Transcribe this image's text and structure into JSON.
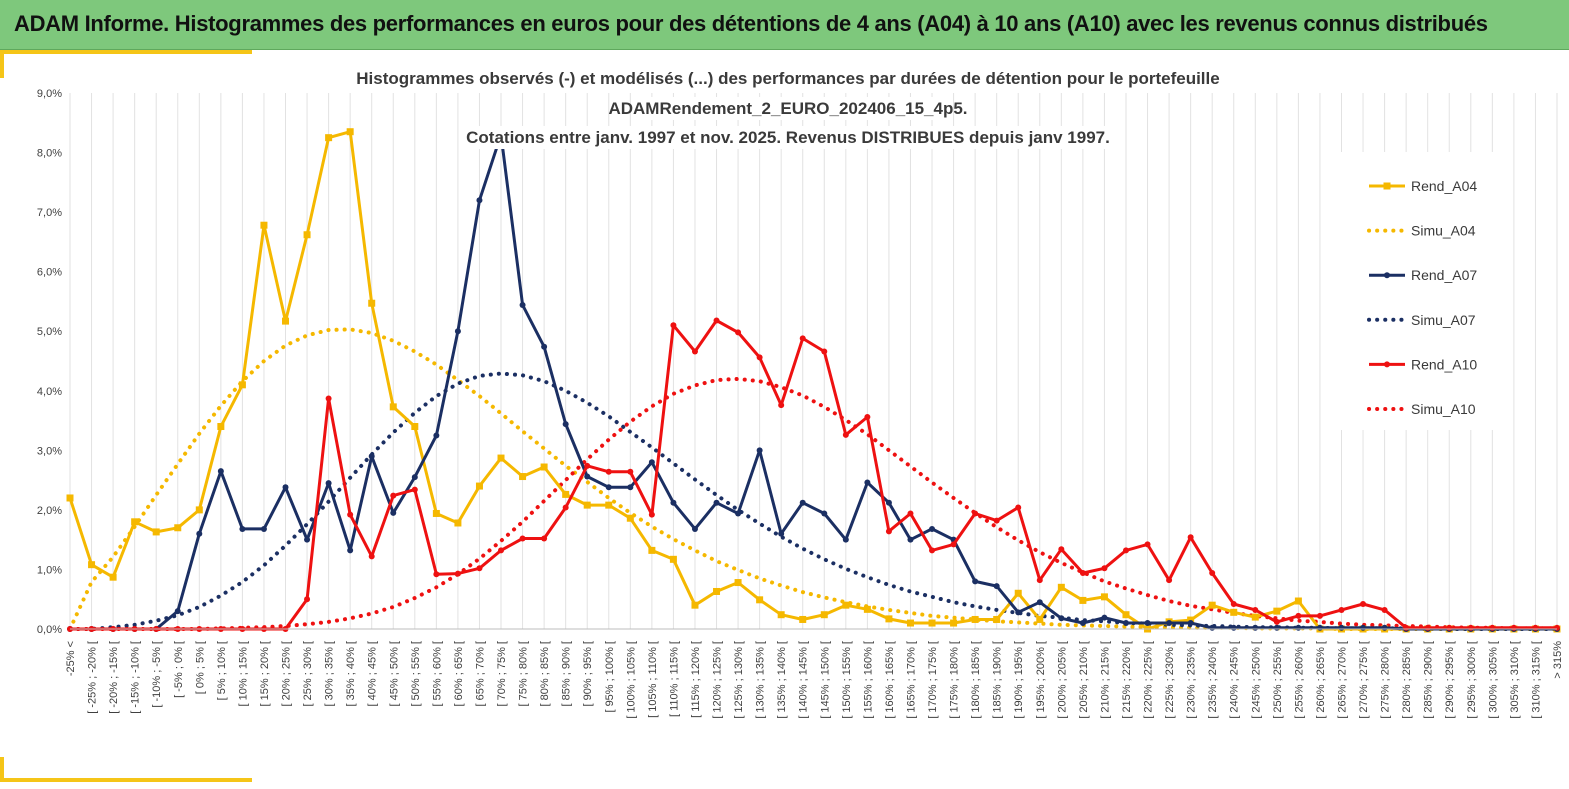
{
  "header": {
    "title": "ADAM Informe. Histogrammes des performances en euros pour des détentions de 4 ans (A04) à 10 ans (A10) avec les revenus connus distribués"
  },
  "colors": {
    "banner": "#7ec87c",
    "accent": "#f5c518",
    "A04": "#f5b800",
    "A07": "#1b2f63",
    "A10": "#ee1111"
  },
  "chart_data": {
    "type": "line",
    "title_lines": [
      "Histogrammes observés (-) et modélisés (...) des performances par durées de détention pour le portefeuille",
      "ADAMRendement_2_EURO_202406_15_4p5.",
      "Cotations entre janv. 1997 et nov. 2025. Revenus DISTRIBUES depuis janv 1997."
    ],
    "ylim": [
      0,
      9
    ],
    "yticks": [
      "0,0%",
      "1,0%",
      "2,0%",
      "3,0%",
      "4,0%",
      "5,0%",
      "6,0%",
      "7,0%",
      "8,0%",
      "9,0%"
    ],
    "y_unit": "%",
    "grid": "vertical",
    "legend_position": "right",
    "categories": [
      "-25% <",
      "[ -25% ; -20% [",
      "[ -20% ; -15% [",
      "[ -15% ; -10% [",
      "[ -10% ; -5% [",
      "[ -5% ; 0% [",
      "[ 0% ; 5% [",
      "[ 5% ; 10% [",
      "[ 10% ; 15% [",
      "[ 15% ; 20% [",
      "[ 20% ; 25% [",
      "[ 25% ; 30% [",
      "[ 30% ; 35% [",
      "[ 35% ; 40% [",
      "[ 40% ; 45% [",
      "[ 45% ; 50% [",
      "[ 50% ; 55% [",
      "[ 55% ; 60% [",
      "[ 60% ; 65% [",
      "[ 65% ; 70% [",
      "[ 70% ; 75% [",
      "[ 75% ; 80% [",
      "[ 80% ; 85% [",
      "[ 85% ; 90% [",
      "[ 90% ; 95% [",
      "[ 95% ; 100% [",
      "[ 100% ; 105% [",
      "[ 105% ; 110% [",
      "[ 110% ; 115% [",
      "[ 115% ; 120% [",
      "[ 120% ; 125% [",
      "[ 125% ; 130% [",
      "[ 130% ; 135% [",
      "[ 135% ; 140% [",
      "[ 140% ; 145% [",
      "[ 145% ; 150% [",
      "[ 150% ; 155% [",
      "[ 155% ; 160% [",
      "[ 160% ; 165% [",
      "[ 165% ; 170% [",
      "[ 170% ; 175% [",
      "[ 175% ; 180% [",
      "[ 180% ; 185% [",
      "[ 185% ; 190% [",
      "[ 190% ; 195% [",
      "[ 195% ; 200% [",
      "[ 200% ; 205% [",
      "[ 205% ; 210% [",
      "[ 210% ; 215% [",
      "[ 215% ; 220% [",
      "[ 220% ; 225% [",
      "[ 225% ; 230% [",
      "[ 230% ; 235% [",
      "[ 235% ; 240% [",
      "[ 240% ; 245% [",
      "[ 245% ; 250% [",
      "[ 250% ; 255% [",
      "[ 255% ; 260% [",
      "[ 260% ; 265% [",
      "[ 265% ; 270% [",
      "[ 270% ; 275% [",
      "[ 275% ; 280% [",
      "[ 280% ; 285% [",
      "[ 285% ; 290% [",
      "[ 290% ; 295% [",
      "[ 295% ; 300% [",
      "[ 300% ; 305% [",
      "[ 305% ; 310% [",
      "[ 310% ; 315% [",
      "> 315%"
    ],
    "series": [
      {
        "name": "Rend_A04",
        "style": "solid",
        "marker": "square",
        "color": "#f5b800",
        "values": [
          2.2,
          1.08,
          0.87,
          1.8,
          1.63,
          1.7,
          2.0,
          3.4,
          4.1,
          6.78,
          5.17,
          6.62,
          8.25,
          8.35,
          5.47,
          3.73,
          3.4,
          1.94,
          1.78,
          2.4,
          2.87,
          2.56,
          2.72,
          2.26,
          2.08,
          2.08,
          1.86,
          1.32,
          1.17,
          0.4,
          0.63,
          0.78,
          0.49,
          0.24,
          0.16,
          0.24,
          0.4,
          0.33,
          0.17,
          0.1,
          0.1,
          0.1,
          0.16,
          0.16,
          0.6,
          0.16,
          0.7,
          0.48,
          0.54,
          0.24,
          0.0,
          0.12,
          0.15,
          0.4,
          0.28,
          0.2,
          0.3,
          0.47,
          0.0,
          0.0,
          0.0,
          0.0,
          0.0,
          0.0,
          0.0,
          0.0,
          0.0,
          0.0,
          0.0,
          0.0
        ]
      },
      {
        "name": "Simu_A04",
        "style": "dotted",
        "marker": "none",
        "color": "#f5b800",
        "values": [
          0.0,
          0.79,
          1.21,
          1.72,
          2.25,
          2.77,
          3.28,
          3.75,
          4.16,
          4.5,
          4.76,
          4.93,
          5.02,
          5.03,
          4.97,
          4.84,
          4.66,
          4.44,
          4.18,
          3.91,
          3.62,
          3.32,
          3.03,
          2.74,
          2.47,
          2.2,
          1.95,
          1.72,
          1.51,
          1.32,
          1.14,
          0.99,
          0.85,
          0.73,
          0.62,
          0.53,
          0.45,
          0.38,
          0.32,
          0.27,
          0.22,
          0.19,
          0.16,
          0.13,
          0.11,
          0.09,
          0.07,
          0.06,
          0.05,
          0.04,
          0.03,
          0.03,
          0.02,
          0.02,
          0.02,
          0.01,
          0.01,
          0.01,
          0.01,
          0.0,
          0.0,
          0.0,
          0.0,
          0.0,
          0.0,
          0.0,
          0.0,
          0.0,
          0.0,
          0.0
        ]
      },
      {
        "name": "Rend_A07",
        "style": "solid",
        "marker": "circle",
        "color": "#1b2f63",
        "values": [
          0.0,
          0.0,
          0.0,
          0.0,
          0.0,
          0.3,
          1.6,
          2.65,
          1.68,
          1.68,
          2.38,
          1.5,
          2.45,
          1.32,
          2.9,
          1.95,
          2.55,
          3.25,
          5.0,
          7.2,
          8.3,
          5.44,
          4.74,
          3.44,
          2.56,
          2.38,
          2.38,
          2.8,
          2.12,
          1.68,
          2.12,
          1.94,
          3.0,
          1.6,
          2.12,
          1.94,
          1.5,
          2.46,
          2.12,
          1.5,
          1.68,
          1.5,
          0.8,
          0.72,
          0.28,
          0.45,
          0.18,
          0.1,
          0.19,
          0.1,
          0.1,
          0.1,
          0.1,
          0.02,
          0.02,
          0.02,
          0.02,
          0.02,
          0.02,
          0.02,
          0.02,
          0.02,
          0.0,
          0.0,
          0.0,
          0.0,
          0.0,
          0.0,
          0.0,
          0.0
        ]
      },
      {
        "name": "Simu_A07",
        "style": "dotted",
        "marker": "none",
        "color": "#1b2f63",
        "values": [
          0.0,
          0.0,
          0.03,
          0.07,
          0.14,
          0.23,
          0.37,
          0.56,
          0.79,
          1.07,
          1.4,
          1.76,
          2.14,
          2.54,
          2.93,
          3.3,
          3.63,
          3.91,
          4.12,
          4.25,
          4.29,
          4.26,
          4.16,
          4.0,
          3.8,
          3.57,
          3.31,
          3.05,
          2.78,
          2.51,
          2.25,
          2.0,
          1.77,
          1.55,
          1.35,
          1.17,
          1.01,
          0.87,
          0.74,
          0.63,
          0.54,
          0.45,
          0.38,
          0.32,
          0.27,
          0.22,
          0.19,
          0.15,
          0.13,
          0.1,
          0.09,
          0.07,
          0.06,
          0.05,
          0.04,
          0.03,
          0.03,
          0.02,
          0.02,
          0.01,
          0.01,
          0.01,
          0.01,
          0.01,
          0.0,
          0.0,
          0.0,
          0.0,
          0.0,
          0.0
        ]
      },
      {
        "name": "Rend_A10",
        "style": "solid",
        "marker": "circle",
        "color": "#ee1111",
        "values": [
          0.0,
          0.0,
          0.0,
          0.0,
          0.0,
          0.0,
          0.0,
          0.0,
          0.0,
          0.0,
          0.0,
          0.5,
          3.87,
          1.92,
          1.22,
          2.24,
          2.34,
          0.92,
          0.93,
          1.02,
          1.32,
          1.52,
          1.52,
          2.04,
          2.74,
          2.64,
          2.64,
          1.92,
          5.1,
          4.66,
          5.18,
          4.98,
          4.56,
          3.76,
          4.88,
          4.66,
          3.26,
          3.56,
          1.64,
          1.94,
          1.32,
          1.42,
          1.94,
          1.82,
          2.04,
          0.82,
          1.34,
          0.94,
          1.02,
          1.32,
          1.42,
          0.82,
          1.54,
          0.94,
          0.42,
          0.32,
          0.12,
          0.22,
          0.22,
          0.32,
          0.42,
          0.32,
          0.02,
          0.02,
          0.02,
          0.02,
          0.02,
          0.02,
          0.02,
          0.02
        ]
      },
      {
        "name": "Simu_A10",
        "style": "dotted",
        "marker": "none",
        "color": "#ee1111",
        "values": [
          0.0,
          0.0,
          0.0,
          0.0,
          0.0,
          0.0,
          0.0,
          0.01,
          0.02,
          0.03,
          0.05,
          0.08,
          0.12,
          0.18,
          0.26,
          0.37,
          0.52,
          0.7,
          0.92,
          1.18,
          1.48,
          1.8,
          2.15,
          2.5,
          2.85,
          3.18,
          3.48,
          3.74,
          3.95,
          4.09,
          4.18,
          4.2,
          4.16,
          4.06,
          3.92,
          3.73,
          3.51,
          3.27,
          3.0,
          2.73,
          2.46,
          2.2,
          1.95,
          1.71,
          1.49,
          1.29,
          1.11,
          0.95,
          0.8,
          0.68,
          0.57,
          0.47,
          0.39,
          0.33,
          0.27,
          0.22,
          0.18,
          0.14,
          0.12,
          0.09,
          0.07,
          0.06,
          0.05,
          0.04,
          0.03,
          0.02,
          0.02,
          0.01,
          0.01,
          0.01
        ]
      }
    ]
  }
}
